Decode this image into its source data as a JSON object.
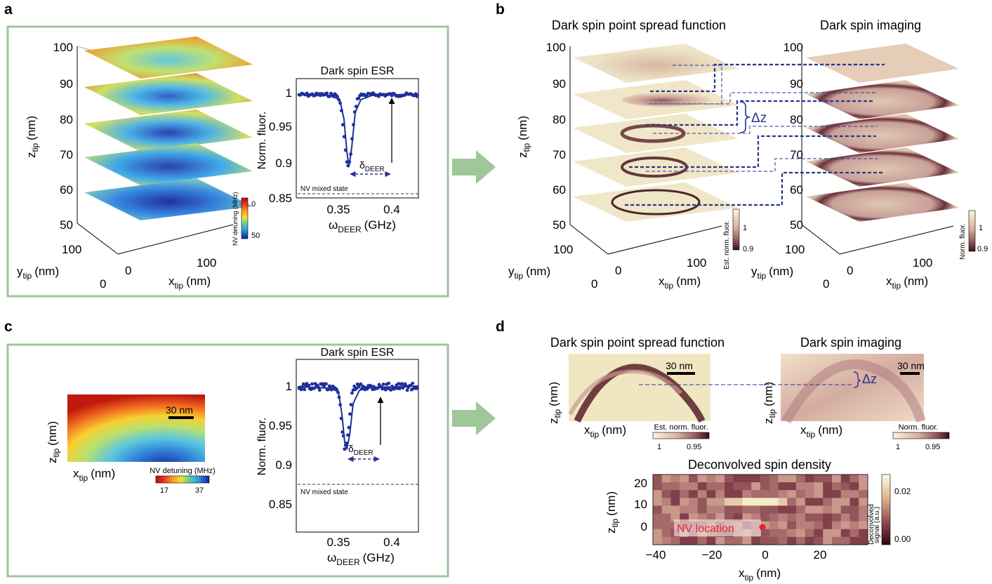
{
  "colors": {
    "panel_border": "#9fc49f",
    "arrow": "#9fc79a",
    "spectrum": "#1f2f9a",
    "annotation": "#2a3590",
    "nv_dot": "#e8252a",
    "nv_label": "#e8252a"
  },
  "panel_a": {
    "letter": "a",
    "z_ticks": [
      "100",
      "90",
      "80",
      "70",
      "60",
      "50"
    ],
    "z_label": "z",
    "z_sub": "tip",
    "z_unit": "(nm)",
    "y_ticks": [
      "100",
      "0"
    ],
    "y_label": "y",
    "y_sub": "tip",
    "y_unit": "(nm)",
    "x_ticks": [
      "0",
      "100"
    ],
    "x_label": "x",
    "x_sub": "tip",
    "x_unit": "(nm)",
    "colorbar_label": "NV detuning (MHz)",
    "colorbar_ticks": [
      "0",
      "50"
    ]
  },
  "panel_a_esr": {
    "title": "Dark spin ESR",
    "ylabel": "Norm. fluor.",
    "xlabel": "ω",
    "xlabel_sub": "DEER",
    "xlabel_unit": "(GHz)",
    "y_ticks": [
      "1",
      "0.95",
      "0.9",
      "0.85"
    ],
    "x_ticks": [
      "0.35",
      "0.4"
    ],
    "delta": "δ",
    "delta_sub": "DEER",
    "mixed_state": "NV mixed state"
  },
  "panel_b": {
    "letter": "b",
    "psf_title": "Dark spin point spread function",
    "img_title": "Dark spin imaging",
    "z_ticks": [
      "100",
      "90",
      "80",
      "70",
      "60",
      "50"
    ],
    "z_label": "z",
    "z_sub": "tip",
    "z_unit": "(nm)",
    "y_ticks": [
      "100",
      "0"
    ],
    "y_label": "y",
    "y_sub": "tip",
    "y_unit": "(nm)",
    "x_ticks": [
      "0",
      "100"
    ],
    "x_label": "x",
    "x_sub": "tip",
    "x_unit": "(nm)",
    "delta_z": "Δz",
    "cb_psf_label": "Est. norm. fluor.",
    "cb_img_label": "Norm. fluor.",
    "cb_ticks": [
      "1",
      "0.9"
    ]
  },
  "panel_c": {
    "letter": "c",
    "scalebar": "30 nm",
    "z_label": "z",
    "z_sub": "tip",
    "z_unit": "(nm)",
    "x_label": "x",
    "x_sub": "tip",
    "x_unit": "(nm)",
    "colorbar_label": "NV detuning (MHz)",
    "colorbar_ticks": [
      "17",
      "37"
    ]
  },
  "panel_c_esr": {
    "title": "Dark spin ESR",
    "ylabel": "Norm. fluor.",
    "xlabel": "ω",
    "xlabel_sub": "DEER",
    "xlabel_unit": "(GHz)",
    "y_ticks": [
      "1",
      "0.95",
      "0.9",
      "0.85"
    ],
    "x_ticks": [
      "0.35",
      "0.4"
    ],
    "delta": "δ",
    "delta_sub": "DEER",
    "mixed_state": "NV mixed state"
  },
  "panel_d": {
    "letter": "d",
    "psf_title": "Dark spin point spread function",
    "img_title": "Dark spin imaging",
    "scalebar": "30 nm",
    "z_label": "z",
    "z_sub": "tip",
    "z_unit": "(nm)",
    "x_label": "x",
    "x_sub": "tip",
    "x_unit": "(nm)",
    "delta_z": "Δz",
    "cb_psf_label": "Est. norm. fluor.",
    "cb_img_label": "Norm. fluor.",
    "cb_ticks": [
      "1",
      "0.95"
    ],
    "deconv_title": "Deconvolved spin density",
    "deconv_y_ticks": [
      "20",
      "10",
      "0"
    ],
    "deconv_x_ticks": [
      "−40",
      "−20",
      "0",
      "20"
    ],
    "deconv_cb_label1": "Deconvolved",
    "deconv_cb_label2": "signal (a.u.)",
    "deconv_cb_ticks": [
      "0.02",
      "0.00"
    ],
    "nv_location": "NV location"
  }
}
